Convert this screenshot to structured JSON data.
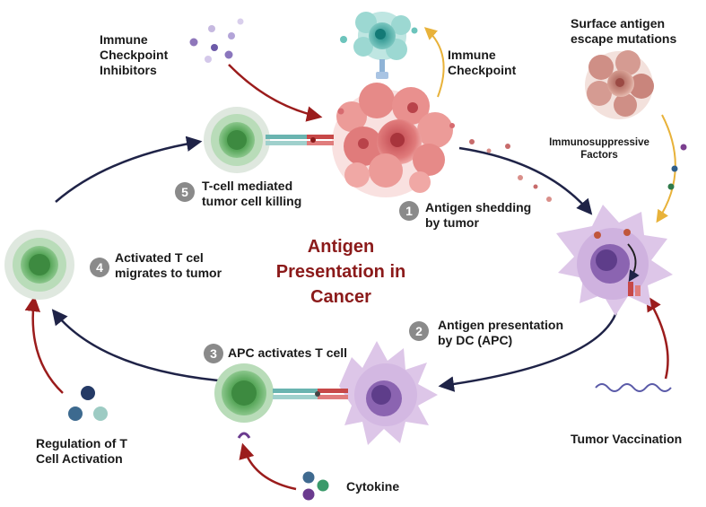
{
  "title": {
    "line1": "Antigen",
    "line2": "Presentation in",
    "line3": "Cancer"
  },
  "steps": [
    {
      "num": "1",
      "line1": "Antigen shedding",
      "line2": "by tumor"
    },
    {
      "num": "2",
      "line1": "Antigen presentation",
      "line2": "by DC (APC)"
    },
    {
      "num": "3",
      "line1": "APC activates T cell"
    },
    {
      "num": "4",
      "line1": "Activated T cel",
      "line2": "migrates to tumor"
    },
    {
      "num": "5",
      "line1": "T-cell mediated",
      "line2": "tumor cell killing"
    }
  ],
  "labels": {
    "checkpoint_inhibitors": {
      "line1": "Immune",
      "line2": "Checkpoint",
      "line3": "Inhibitors"
    },
    "immune_checkpoint": {
      "line1": "Immune",
      "line2": "Checkpoint"
    },
    "escape_mutations": {
      "line1": "Surface antigen",
      "line2": "escape mutations"
    },
    "immunosuppressive": {
      "line1": "Immunosuppressive",
      "line2": "Factors"
    },
    "tumor_vaccination": "Tumor Vaccination",
    "regulation": {
      "line1": "Regulation of T",
      "line2": "Cell Activation"
    },
    "cytokine": "Cytokine"
  },
  "colors": {
    "cycle_arrow": "#1f2347",
    "input_arrow": "#9b1c1c",
    "checkpoint_arrow": "#e8b23a",
    "tcell_green": "#4e9b4f",
    "dc_purple": "#c5a3d6",
    "tumor_red": "#d96a6a",
    "title_red": "#8b1a1a"
  }
}
